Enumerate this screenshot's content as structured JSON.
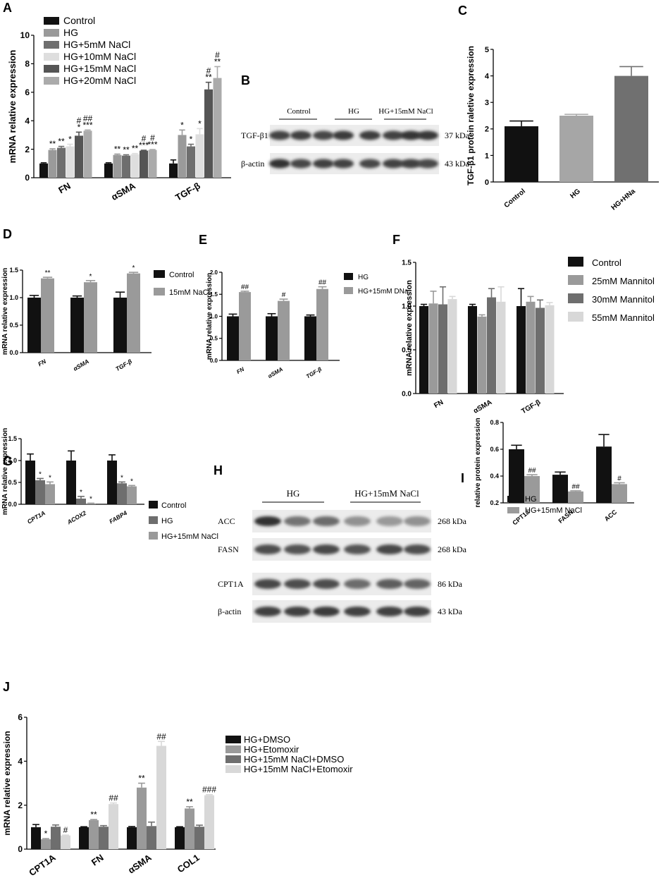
{
  "colors": {
    "black": "#111111",
    "darkgray": "#6e6e6e",
    "midgray": "#9a9a9a",
    "lightgray": "#c8c8c8",
    "verylight": "#dedede",
    "darkest": "#555555"
  },
  "chart_data": [
    {
      "panel": "A",
      "type": "bar",
      "categories": [
        "FN",
        "αSMA",
        "TGF-β"
      ],
      "ylabel": "mRNA relative expression",
      "ylim": [
        0,
        10
      ],
      "yticks": [
        0,
        2,
        4,
        6,
        8,
        10
      ],
      "legend_position": "top-left",
      "series": [
        {
          "name": "Control",
          "values": [
            1.0,
            1.0,
            1.0
          ],
          "errors": [
            0.05,
            0.05,
            0.25
          ],
          "color": "#111111"
        },
        {
          "name": "HG",
          "values": [
            1.95,
            1.6,
            3.0
          ],
          "errors": [
            0.08,
            0.06,
            0.35
          ],
          "color": "#9a9a9a"
        },
        {
          "name": "HG+5mM NaCl",
          "values": [
            2.1,
            1.55,
            2.2
          ],
          "errors": [
            0.1,
            0.06,
            0.15
          ],
          "color": "#6e6e6e"
        },
        {
          "name": "HG+10mM NaCl",
          "values": [
            2.2,
            1.65,
            3.05
          ],
          "errors": [
            0.15,
            0.05,
            0.4
          ],
          "color": "#dedede"
        },
        {
          "name": "HG+15mM NaCl",
          "values": [
            2.95,
            1.9,
            6.2
          ],
          "errors": [
            0.25,
            0.03,
            0.5
          ],
          "color": "#555555"
        },
        {
          "name": "HG+20mM NaCl",
          "values": [
            3.3,
            1.95,
            7.0
          ],
          "errors": [
            0.05,
            0.03,
            0.8
          ],
          "color": "#ababab"
        }
      ],
      "annotations": [
        [
          "",
          "**",
          "**",
          "*",
          "#\n*",
          "##\n***"
        ],
        [
          "",
          "**",
          "**",
          "**",
          "#\n***",
          "#\n***"
        ],
        [
          "",
          "*",
          "*",
          "*",
          "#\n**",
          "#\n**"
        ]
      ]
    },
    {
      "panel": "C",
      "type": "bar",
      "categories": [
        "Control",
        "HG",
        "HG+HNa"
      ],
      "ylabel": "TGF-β1 protein raletive expression",
      "ylim": [
        0,
        5
      ],
      "yticks": [
        0,
        1,
        2,
        3,
        4,
        5
      ],
      "series": [
        {
          "name": "",
          "values": [
            2.1,
            2.5,
            4.0
          ],
          "errors": [
            0.2,
            0.05,
            0.35
          ],
          "colors": [
            "#111111",
            "#a6a6a6",
            "#707070"
          ]
        }
      ],
      "annotations": [
        [
          "",
          "",
          "#\n*"
        ]
      ]
    },
    {
      "panel": "D",
      "type": "bar",
      "categories": [
        "FN",
        "αSMA",
        "TGF-β"
      ],
      "ylabel": "mRNA relative expression",
      "ylim": [
        0,
        1.5
      ],
      "yticks": [
        0.0,
        0.5,
        1.0,
        1.5
      ],
      "legend_position": "right",
      "series": [
        {
          "name": "Control",
          "values": [
            1.0,
            1.0,
            1.0
          ],
          "errors": [
            0.04,
            0.03,
            0.1
          ],
          "color": "#111111"
        },
        {
          "name": "15mM NaCl",
          "values": [
            1.35,
            1.28,
            1.44
          ],
          "errors": [
            0.02,
            0.03,
            0.02
          ],
          "color": "#9a9a9a"
        }
      ],
      "annotations": [
        [
          "",
          "**"
        ],
        [
          "",
          "*"
        ],
        [
          "",
          "*"
        ]
      ]
    },
    {
      "panel": "E",
      "type": "bar",
      "categories": [
        "FN",
        "αSMA",
        "TGF-β"
      ],
      "ylabel": "mRNA relative expression",
      "ylim": [
        0,
        2.0
      ],
      "yticks": [
        0.0,
        0.5,
        1.0,
        1.5,
        2.0
      ],
      "legend_position": "right",
      "series": [
        {
          "name": "HG",
          "values": [
            1.0,
            1.0,
            1.0
          ],
          "errors": [
            0.05,
            0.06,
            0.03
          ],
          "color": "#111111"
        },
        {
          "name": "HG+15mM DNa",
          "values": [
            1.55,
            1.35,
            1.62
          ],
          "errors": [
            0.02,
            0.04,
            0.05
          ],
          "color": "#9a9a9a"
        }
      ],
      "annotations": [
        [
          "",
          "##"
        ],
        [
          "",
          "#"
        ],
        [
          "",
          "##"
        ]
      ]
    },
    {
      "panel": "F",
      "type": "bar",
      "categories": [
        "FN",
        "αSMA",
        "TGF-β"
      ],
      "ylabel": "mRNA relative expression",
      "ylim": [
        0,
        1.5
      ],
      "yticks": [
        0.0,
        0.5,
        1.0,
        1.5
      ],
      "legend_position": "right",
      "series": [
        {
          "name": "Control",
          "values": [
            1.0,
            1.0,
            1.0
          ],
          "errors": [
            0.02,
            0.02,
            0.2
          ],
          "color": "#111111"
        },
        {
          "name": "25mM Mannitol",
          "values": [
            1.03,
            0.88,
            1.05
          ],
          "errors": [
            0.14,
            0.02,
            0.06
          ],
          "color": "#9a9a9a"
        },
        {
          "name": "30mM Mannitol",
          "values": [
            1.02,
            1.1,
            0.98
          ],
          "errors": [
            0.2,
            0.1,
            0.09
          ],
          "color": "#6e6e6e"
        },
        {
          "name": "55mM Mannitol",
          "values": [
            1.08,
            1.05,
            1.01
          ],
          "errors": [
            0.03,
            0.17,
            0.03
          ],
          "color": "#d8d8d8"
        }
      ]
    },
    {
      "panel": "G",
      "type": "bar",
      "categories": [
        "CPT1A",
        "ACOX2",
        "FABP4"
      ],
      "ylabel": "mRNA relative expression",
      "ylim": [
        0,
        1.5
      ],
      "yticks": [
        0.0,
        0.5,
        1.0,
        1.5
      ],
      "legend_position": "right",
      "series": [
        {
          "name": "Control",
          "values": [
            1.0,
            1.0,
            1.0
          ],
          "errors": [
            0.15,
            0.22,
            0.13
          ],
          "color": "#111111"
        },
        {
          "name": "HG",
          "values": [
            0.55,
            0.13,
            0.48
          ],
          "errors": [
            0.04,
            0.05,
            0.03
          ],
          "color": "#6e6e6e"
        },
        {
          "name": "HG+15mM NaCl",
          "values": [
            0.46,
            0.02,
            0.41
          ],
          "errors": [
            0.05,
            0.005,
            0.02
          ],
          "color": "#9a9a9a"
        }
      ],
      "annotations": [
        [
          "",
          "*",
          "*"
        ],
        [
          "",
          "*",
          "*"
        ],
        [
          "",
          "*",
          "*"
        ]
      ]
    },
    {
      "panel": "I",
      "type": "bar",
      "categories": [
        "CPT1a",
        "FASN",
        "ACC"
      ],
      "ylabel": "relative protein expression",
      "ylim": [
        0.2,
        0.8
      ],
      "yticks": [
        0.2,
        0.4,
        0.6,
        0.8
      ],
      "legend_position": "top-left",
      "series": [
        {
          "name": "HG",
          "values": [
            0.6,
            0.41,
            0.62
          ],
          "errors": [
            0.03,
            0.02,
            0.09
          ],
          "color": "#111111"
        },
        {
          "name": "HG+15mM NaCl",
          "values": [
            0.4,
            0.285,
            0.34
          ],
          "errors": [
            0.01,
            0.005,
            0.01
          ],
          "color": "#9a9a9a"
        }
      ],
      "annotations": [
        [
          "",
          "##"
        ],
        [
          "",
          "##"
        ],
        [
          "",
          "#"
        ]
      ]
    },
    {
      "panel": "J",
      "type": "bar",
      "categories": [
        "CPT1A",
        "FN",
        "αSMA",
        "COL1"
      ],
      "ylabel": "mRNA relative expression",
      "ylim": [
        0,
        6
      ],
      "yticks": [
        0,
        2,
        4,
        6
      ],
      "legend_position": "right",
      "series": [
        {
          "name": "HG+DMSO",
          "values": [
            1.0,
            1.0,
            1.0,
            1.0
          ],
          "errors": [
            0.12,
            0.02,
            0.03,
            0.02
          ],
          "color": "#111111"
        },
        {
          "name": "HG+Etomoxir",
          "values": [
            0.45,
            1.32,
            2.8,
            1.85
          ],
          "errors": [
            0.03,
            0.03,
            0.2,
            0.08
          ],
          "color": "#9a9a9a"
        },
        {
          "name": "HG+15mM NaCl+DMSO",
          "values": [
            1.02,
            1.02,
            1.05,
            1.02
          ],
          "errors": [
            0.08,
            0.05,
            0.18,
            0.07
          ],
          "color": "#6e6e6e"
        },
        {
          "name": "HG+15mM NaCl+Etomoxir",
          "values": [
            0.62,
            2.05,
            4.7,
            2.45
          ],
          "errors": [
            0.02,
            0.05,
            0.2,
            0.03
          ],
          "color": "#d8d8d8"
        }
      ],
      "annotations": [
        [
          "",
          "*",
          "",
          "#"
        ],
        [
          "",
          "**",
          "",
          "##"
        ],
        [
          "",
          "**",
          "",
          "##"
        ],
        [
          "",
          "**",
          "",
          "###"
        ]
      ]
    }
  ],
  "blots": {
    "B": {
      "groups": [
        "Control",
        "HG",
        "HG+15mM NaCl"
      ],
      "rows": [
        {
          "label": "TGF-β1",
          "kda": "37 kDa"
        },
        {
          "label": "β-actin",
          "kda": "43 kDa"
        }
      ]
    },
    "H": {
      "groups": [
        "HG",
        "HG+15mM NaCl"
      ],
      "rows": [
        {
          "label": "ACC",
          "kda": "268 kDa"
        },
        {
          "label": "FASN",
          "kda": "268 kDa"
        },
        {
          "label": "CPT1A",
          "kda": "86 kDa"
        },
        {
          "label": "β-actin",
          "kda": "43 kDa"
        }
      ]
    }
  },
  "panel_letters": [
    "A",
    "B",
    "C",
    "D",
    "E",
    "F",
    "G",
    "H",
    "I",
    "J"
  ]
}
